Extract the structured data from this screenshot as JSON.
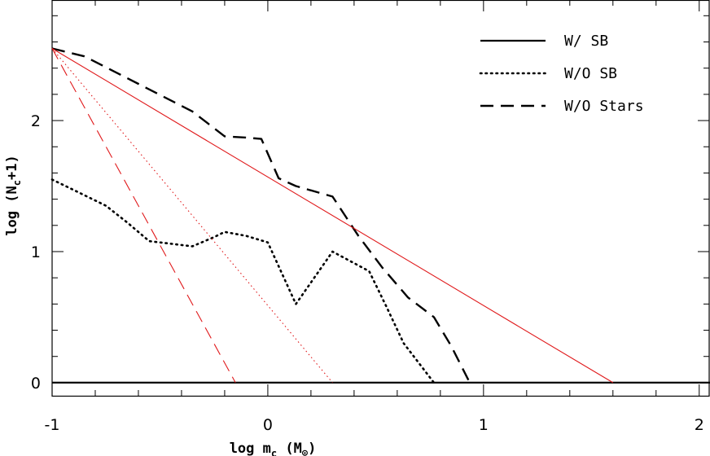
{
  "chart_data": {
    "type": "line",
    "xlabel": {
      "main": "log  m",
      "sub": "c",
      "unit": " (M",
      "unit_sub": "⊙",
      "close": ")"
    },
    "ylabel": {
      "main": "log  (N",
      "sub": "c",
      "rest": "+1)"
    },
    "xlim": [
      -1,
      2.05
    ],
    "ylim": [
      -0.1,
      2.92
    ],
    "x_ticks": [
      -1,
      0,
      1,
      2
    ],
    "y_ticks": [
      0,
      1,
      2
    ],
    "grid": false,
    "legend_position": "top-right",
    "series": [
      {
        "name": "W/ SB",
        "color": "#000000",
        "style": "solid",
        "points": [
          [
            -1,
            0
          ],
          [
            2.05,
            0
          ]
        ]
      },
      {
        "name": "W/O SB",
        "color": "#000000",
        "style": "dotted",
        "points": [
          [
            -1,
            1.55
          ],
          [
            -0.9,
            1.47
          ],
          [
            -0.75,
            1.35
          ],
          [
            -0.65,
            1.22
          ],
          [
            -0.55,
            1.08
          ],
          [
            -0.45,
            1.06
          ],
          [
            -0.35,
            1.04
          ],
          [
            -0.25,
            1.11
          ],
          [
            -0.2,
            1.15
          ],
          [
            -0.1,
            1.12
          ],
          [
            0,
            1.07
          ],
          [
            0.13,
            0.6
          ],
          [
            0.3,
            1.0
          ],
          [
            0.47,
            0.85
          ],
          [
            0.55,
            0.58
          ],
          [
            0.63,
            0.3
          ],
          [
            0.7,
            0.15
          ],
          [
            0.77,
            0
          ]
        ]
      },
      {
        "name": "W/O Stars",
        "color": "#000000",
        "style": "dashed",
        "points": [
          [
            -1,
            2.55
          ],
          [
            -0.85,
            2.49
          ],
          [
            -0.6,
            2.28
          ],
          [
            -0.35,
            2.07
          ],
          [
            -0.2,
            1.88
          ],
          [
            -0.1,
            1.87
          ],
          [
            -0.03,
            1.86
          ],
          [
            0.05,
            1.56
          ],
          [
            0.13,
            1.5
          ],
          [
            0.3,
            1.42
          ],
          [
            0.42,
            1.12
          ],
          [
            0.53,
            0.88
          ],
          [
            0.65,
            0.65
          ],
          [
            0.77,
            0.5
          ],
          [
            0.85,
            0.28
          ],
          [
            0.93,
            0.02
          ]
        ]
      },
      {
        "name": "",
        "color": "#e0191b",
        "style": "solid-thin",
        "points": [
          [
            -1,
            2.55
          ],
          [
            1.6,
            0
          ]
        ]
      },
      {
        "name": "",
        "color": "#e0191b",
        "style": "dotted-thin",
        "points": [
          [
            -1,
            2.55
          ],
          [
            0.3,
            0
          ]
        ]
      },
      {
        "name": "",
        "color": "#e0191b",
        "style": "dashed-thin",
        "points": [
          [
            -1,
            2.55
          ],
          [
            -0.15,
            0
          ]
        ]
      }
    ]
  }
}
